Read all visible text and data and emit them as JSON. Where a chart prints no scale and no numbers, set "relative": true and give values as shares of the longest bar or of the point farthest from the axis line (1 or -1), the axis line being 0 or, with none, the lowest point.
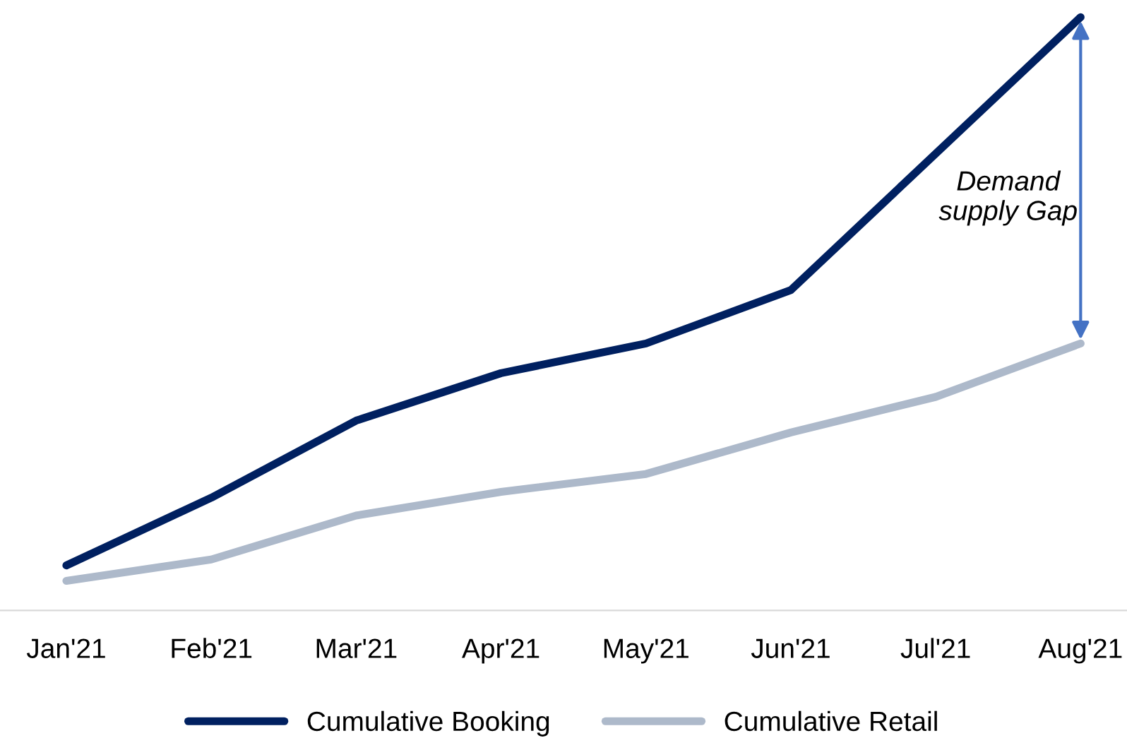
{
  "chart_data": {
    "type": "line",
    "relative": true,
    "categories": [
      "Jan'21",
      "Feb'21",
      "Mar'21",
      "Apr'21",
      "May'21",
      "Jun'21",
      "Jul'21",
      "Aug'21"
    ],
    "series": [
      {
        "name": "Cumulative Booking",
        "color": "#002060",
        "values": [
          0.076,
          0.19,
          0.32,
          0.4,
          0.45,
          0.54,
          0.77,
          1.0
        ]
      },
      {
        "name": "Cumulative Retail",
        "color": "#adb9ca",
        "values": [
          0.05,
          0.086,
          0.16,
          0.2,
          0.23,
          0.3,
          0.36,
          0.45
        ]
      }
    ],
    "annotations": [
      "Demand supply Gap"
    ],
    "legend": "bottom",
    "grid": false,
    "marker": "none",
    "line_style": "solid"
  }
}
